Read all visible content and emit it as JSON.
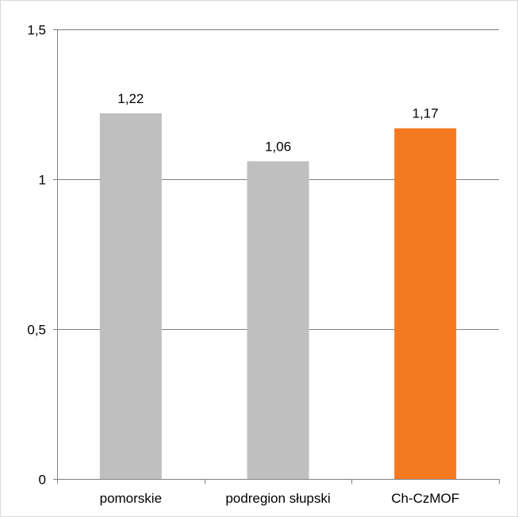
{
  "chart_data": {
    "type": "bar",
    "categories": [
      "pomorskie",
      "podregion słupski",
      "Ch-CzMOF"
    ],
    "values": [
      1.22,
      1.06,
      1.17
    ],
    "data_labels": [
      "1,22",
      "1,06",
      "1,17"
    ],
    "bar_colors": [
      "#bfbfbf",
      "#bfbfbf",
      "#f47920"
    ],
    "ylim": [
      0,
      1.5
    ],
    "y_ticks": [
      0,
      0.5,
      1,
      1.5
    ],
    "y_tick_labels": [
      "0",
      "0,5",
      "1",
      "1,5"
    ],
    "title": "",
    "xlabel": "",
    "ylabel": "",
    "grid": true,
    "gridline_color": "#808080",
    "legend": "none"
  }
}
